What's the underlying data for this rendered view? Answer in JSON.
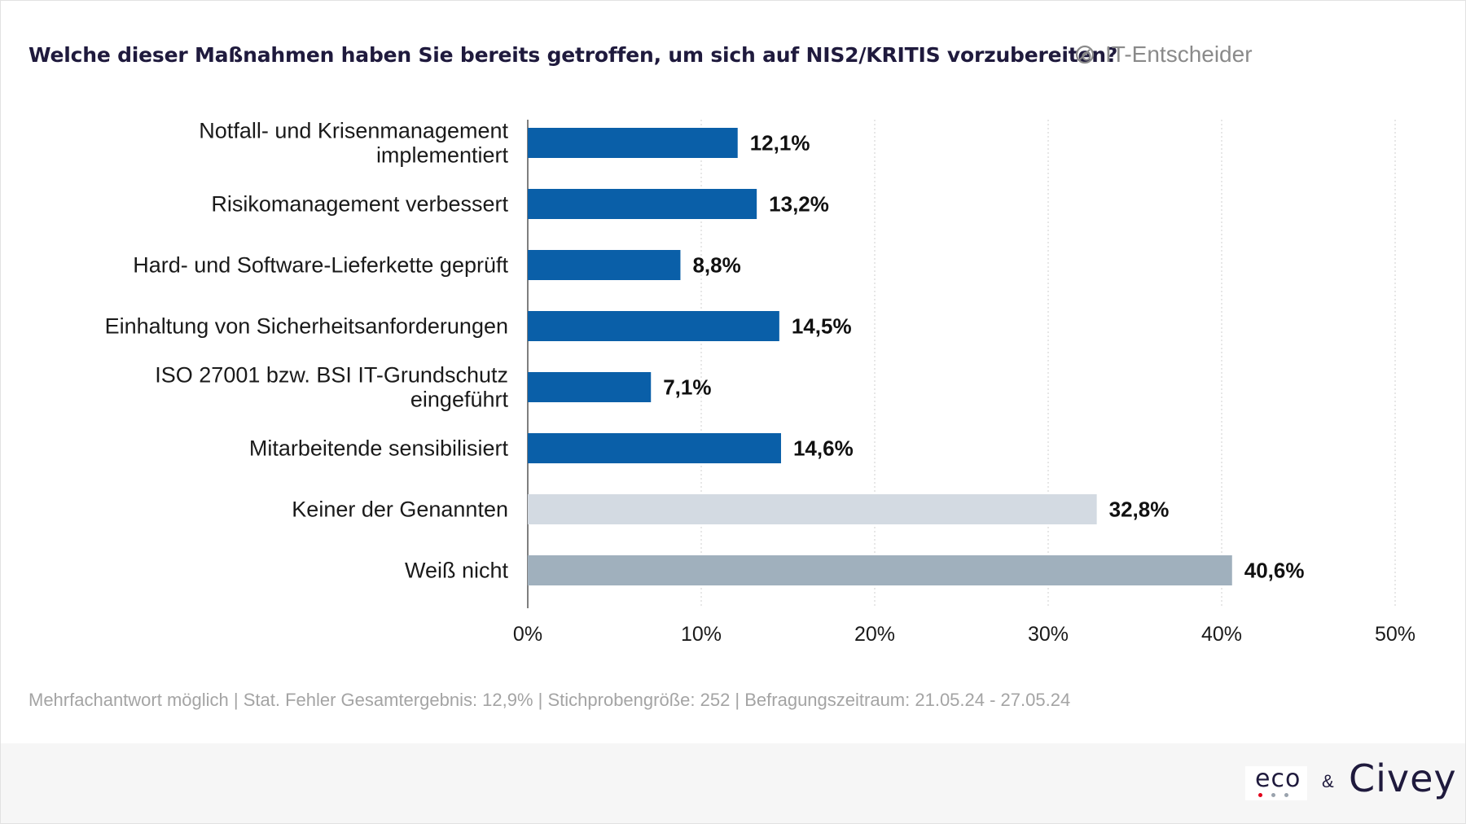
{
  "header": {
    "title": "Welche dieser Maßnahmen haben Sie bereits getroffen, um sich auf NIS2/KRITIS vorzubereiten?",
    "segment_label": "IT-Entscheider",
    "segment_icon": "filter-circle-icon"
  },
  "chart_data": {
    "type": "bar",
    "orientation": "horizontal",
    "categories": [
      "Notfall- und Krisenmanagement implementiert",
      "Risikomanagement verbessert",
      "Hard- und Software-Lieferkette geprüft",
      "Einhaltung von Sicherheitsanforderungen",
      "ISO 27001 bzw. BSI IT-Grundschutz eingeführt",
      "Mitarbeitende sensibilisiert",
      "Keiner der Genannten",
      "Weiß nicht"
    ],
    "category_lines": [
      [
        "Notfall- und Krisenmanagement",
        "implementiert"
      ],
      [
        "Risikomanagement verbessert"
      ],
      [
        "Hard- und Software-Lieferkette geprüft"
      ],
      [
        "Einhaltung von Sicherheitsanforderungen"
      ],
      [
        "ISO 27001 bzw. BSI IT-Grundschutz",
        "eingeführt"
      ],
      [
        "Mitarbeitende sensibilisiert"
      ],
      [
        "Keiner der Genannten"
      ],
      [
        "Weiß nicht"
      ]
    ],
    "values": [
      12.1,
      13.2,
      8.8,
      14.5,
      7.1,
      14.6,
      32.8,
      40.6
    ],
    "value_labels": [
      "12,1%",
      "13,2%",
      "8,8%",
      "14,5%",
      "7,1%",
      "14,6%",
      "32,8%",
      "40,6%"
    ],
    "bar_colors": [
      "#0a5fa8",
      "#0a5fa8",
      "#0a5fa8",
      "#0a5fa8",
      "#0a5fa8",
      "#0a5fa8",
      "#d3dae2",
      "#a0b0bd"
    ],
    "xlim": [
      0,
      50
    ],
    "xticks": [
      0,
      10,
      20,
      30,
      40,
      50
    ],
    "xtick_labels": [
      "0%",
      "10%",
      "20%",
      "30%",
      "40%",
      "50%"
    ],
    "grid": "vertical dotted",
    "title": "Welche dieser Maßnahmen haben Sie bereits getroffen, um sich auf NIS2/KRITIS vorzubereiten?",
    "xlabel": "",
    "ylabel": ""
  },
  "footnote": "Mehrfachantwort möglich | Stat. Fehler Gesamtergebnis: 12,9% | Stichprobengröße: 252 | Befragungszeitraum: 21.05.24 - 27.05.24",
  "footer": {
    "logo_eco": "eco",
    "ampersand": "&",
    "logo_civey": "Civey",
    "eco_dot_colors": [
      "#e2001a",
      "#9aa3ad",
      "#9aa3ad"
    ]
  }
}
